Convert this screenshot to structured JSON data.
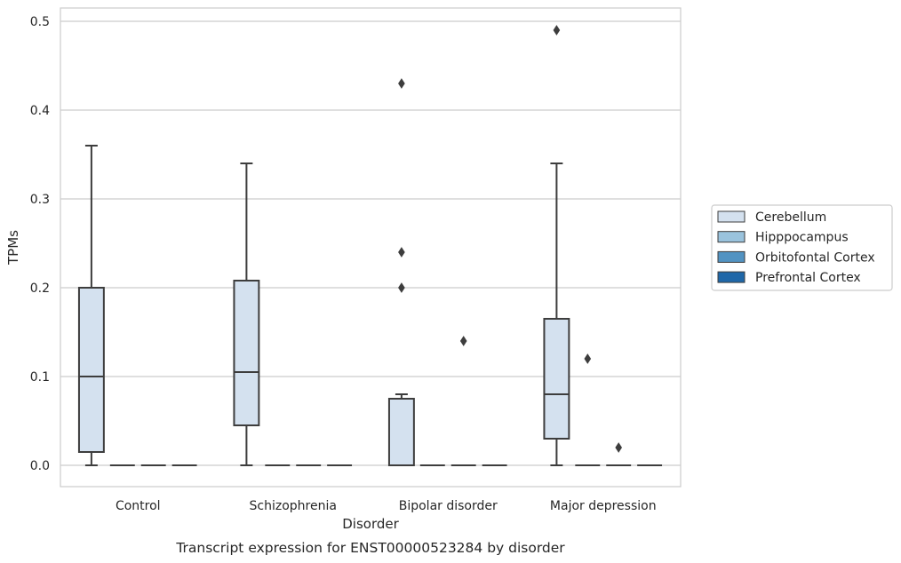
{
  "chart_data": {
    "type": "box",
    "xlabel": "Disorder",
    "ylabel": "TPMs",
    "caption": "Transcript expression for ENST00000523284 by disorder",
    "ylim": [
      -0.024,
      0.515
    ],
    "yticks": [
      "0.0",
      "0.1",
      "0.2",
      "0.3",
      "0.4",
      "0.5"
    ],
    "grid": "horizontal",
    "legend_position": "right",
    "categories": [
      "Control",
      "Schizophrenia",
      "Bipolar disorder",
      "Major depression"
    ],
    "series": [
      {
        "name": "Cerebellum",
        "color": "#d4e1ef",
        "boxes": [
          {
            "whisker_low": 0.0,
            "q1": 0.015,
            "median": 0.1,
            "q3": 0.2,
            "whisker_high": 0.36,
            "outliers": []
          },
          {
            "whisker_low": 0.0,
            "q1": 0.045,
            "median": 0.105,
            "q3": 0.208,
            "whisker_high": 0.34,
            "outliers": []
          },
          {
            "whisker_low": 0.0,
            "q1": 0.0,
            "median": 0.0,
            "q3": 0.075,
            "whisker_high": 0.08,
            "outliers": [
              0.2,
              0.24,
              0.43
            ]
          },
          {
            "whisker_low": 0.0,
            "q1": 0.03,
            "median": 0.08,
            "q3": 0.165,
            "whisker_high": 0.34,
            "outliers": [
              0.49
            ]
          }
        ]
      },
      {
        "name": "Hipppocampus",
        "color": "#9ac3dd",
        "boxes": [
          {
            "whisker_low": 0.0,
            "q1": 0.0,
            "median": 0.0,
            "q3": 0.0,
            "whisker_high": 0.0,
            "outliers": []
          },
          {
            "whisker_low": 0.0,
            "q1": 0.0,
            "median": 0.0,
            "q3": 0.0,
            "whisker_high": 0.0,
            "outliers": []
          },
          {
            "whisker_low": 0.0,
            "q1": 0.0,
            "median": 0.0,
            "q3": 0.0,
            "whisker_high": 0.0,
            "outliers": []
          },
          {
            "whisker_low": 0.0,
            "q1": 0.0,
            "median": 0.0,
            "q3": 0.0,
            "whisker_high": 0.0,
            "outliers": [
              0.12
            ]
          }
        ]
      },
      {
        "name": "Orbitofontal Cortex",
        "color": "#5293c2",
        "boxes": [
          {
            "whisker_low": 0.0,
            "q1": 0.0,
            "median": 0.0,
            "q3": 0.0,
            "whisker_high": 0.0,
            "outliers": []
          },
          {
            "whisker_low": 0.0,
            "q1": 0.0,
            "median": 0.0,
            "q3": 0.0,
            "whisker_high": 0.0,
            "outliers": []
          },
          {
            "whisker_low": 0.0,
            "q1": 0.0,
            "median": 0.0,
            "q3": 0.0,
            "whisker_high": 0.0,
            "outliers": [
              0.14
            ]
          },
          {
            "whisker_low": 0.0,
            "q1": 0.0,
            "median": 0.0,
            "q3": 0.0,
            "whisker_high": 0.0,
            "outliers": [
              0.02
            ]
          }
        ]
      },
      {
        "name": "Prefrontal Cortex",
        "color": "#1f67a8",
        "boxes": [
          {
            "whisker_low": 0.0,
            "q1": 0.0,
            "median": 0.0,
            "q3": 0.0,
            "whisker_high": 0.0,
            "outliers": []
          },
          {
            "whisker_low": 0.0,
            "q1": 0.0,
            "median": 0.0,
            "q3": 0.0,
            "whisker_high": 0.0,
            "outliers": []
          },
          {
            "whisker_low": 0.0,
            "q1": 0.0,
            "median": 0.0,
            "q3": 0.0,
            "whisker_high": 0.0,
            "outliers": []
          },
          {
            "whisker_low": 0.0,
            "q1": 0.0,
            "median": 0.0,
            "q3": 0.0,
            "whisker_high": 0.0,
            "outliers": []
          }
        ]
      }
    ]
  }
}
